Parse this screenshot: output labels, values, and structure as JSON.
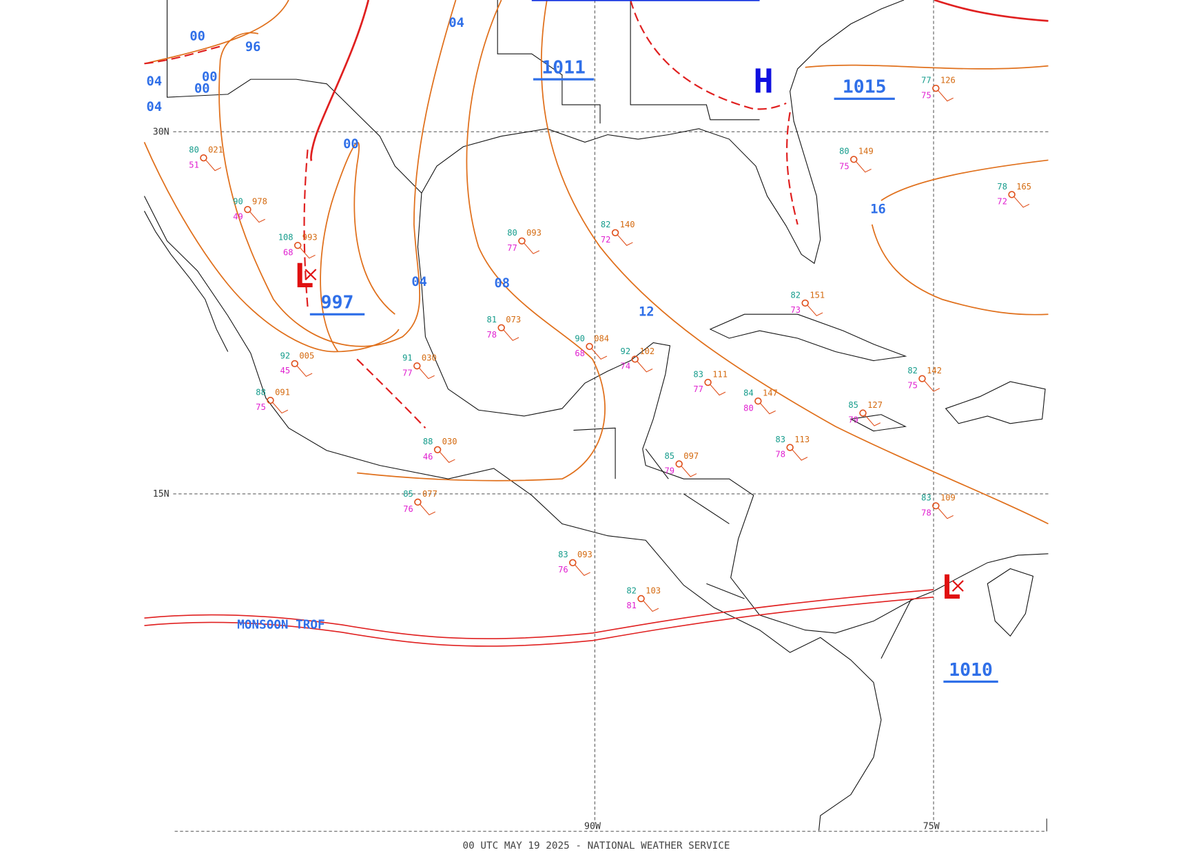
{
  "map": {
    "grid_labels": {
      "lat": [
        "30N",
        "15N"
      ],
      "lon": [
        "90W",
        "75W"
      ]
    },
    "isobar_labels": [
      "04",
      "04",
      "00",
      "00",
      "00",
      "96",
      "00",
      "04",
      "08",
      "12",
      "16",
      "04"
    ],
    "pressure_labels": [
      "1011",
      "1015"
    ],
    "pressure_systems": [
      {
        "symbol": "H"
      },
      {
        "symbol": "L",
        "value": "997"
      },
      {
        "symbol": "L",
        "value": "1010"
      }
    ],
    "trough_label": "MONSOON TROF",
    "stations": [
      {
        "temp": "80",
        "pressure": "149",
        "dew": "75"
      },
      {
        "temp": "82",
        "pressure": "140",
        "dew": "72"
      },
      {
        "temp": "80",
        "pressure": "093",
        "dew": "77"
      },
      {
        "temp": "81",
        "pressure": "073",
        "dew": "78"
      },
      {
        "temp": "90",
        "pressure": "084",
        "dew": "68"
      },
      {
        "temp": "92",
        "pressure": "102",
        "dew": "74"
      },
      {
        "temp": "83",
        "pressure": "111",
        "dew": "77"
      },
      {
        "temp": "83",
        "pressure": "113",
        "dew": "78"
      },
      {
        "temp": "83",
        "pressure": "109",
        "dew": "78"
      },
      {
        "temp": "85",
        "pressure": "127",
        "dew": "79"
      },
      {
        "temp": "82",
        "pressure": "142",
        "dew": "75"
      },
      {
        "temp": "78",
        "pressure": "165",
        "dew": "72"
      },
      {
        "temp": "77",
        "pressure": "126",
        "dew": "75"
      },
      {
        "temp": "82",
        "pressure": "151",
        "dew": "73"
      },
      {
        "temp": "84",
        "pressure": "147",
        "dew": "80"
      },
      {
        "temp": "91",
        "pressure": "030",
        "dew": "77"
      },
      {
        "temp": "88",
        "pressure": "030",
        "dew": "46"
      },
      {
        "temp": "85",
        "pressure": "077",
        "dew": "76"
      },
      {
        "temp": "83",
        "pressure": "093",
        "dew": "76"
      },
      {
        "temp": "82",
        "pressure": "103",
        "dew": "81"
      },
      {
        "temp": "85",
        "pressure": "097",
        "dew": "79"
      },
      {
        "temp": "92",
        "pressure": "005",
        "dew": "45"
      },
      {
        "temp": "88",
        "pressure": "091",
        "dew": "75"
      },
      {
        "temp": "80",
        "pressure": "021",
        "dew": "51"
      },
      {
        "temp": "90",
        "pressure": "978",
        "dew": "49"
      },
      {
        "temp": "108",
        "pressure": "993",
        "dew": "68"
      }
    ],
    "footer": "00 UTC MAY 19 2025 - NATIONAL WEATHER SERVICE"
  }
}
